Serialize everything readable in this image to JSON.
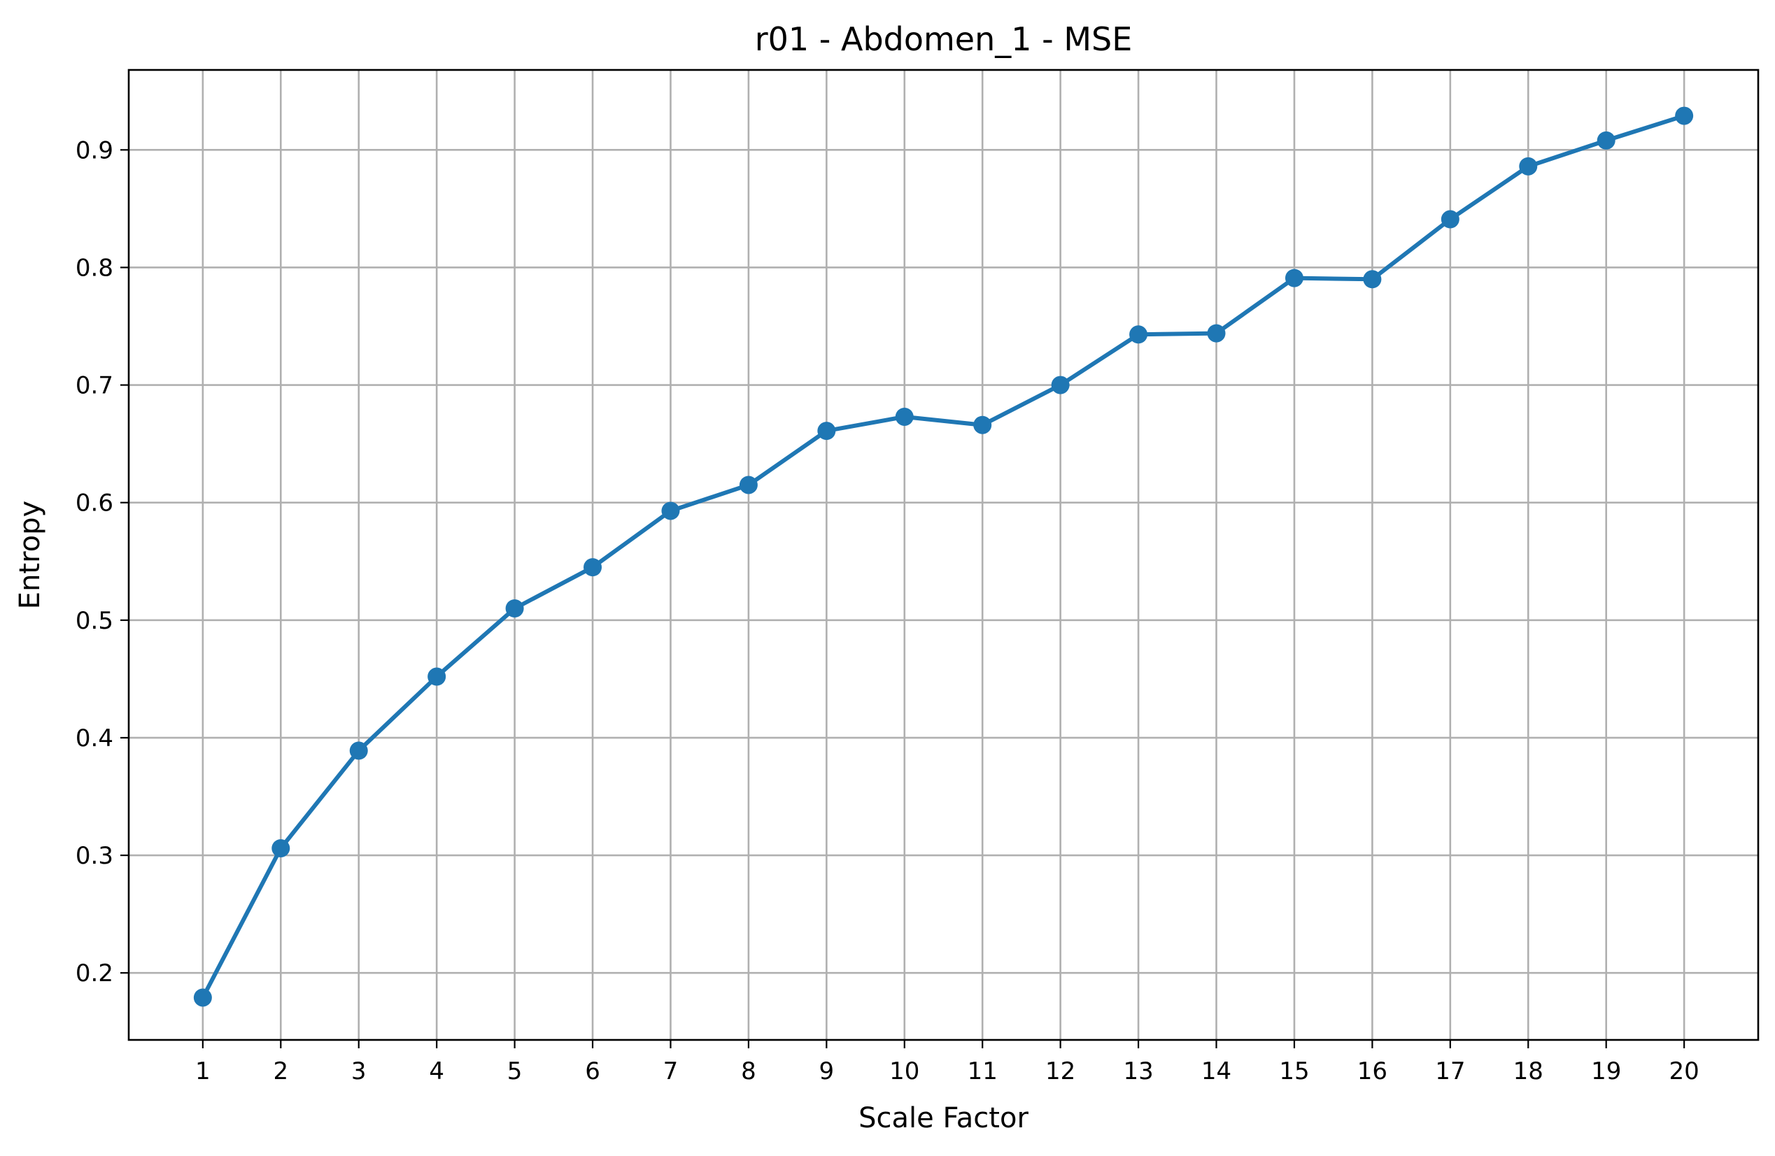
{
  "chart_data": {
    "type": "line",
    "title": "r01 - Abdomen_1 - MSE",
    "xlabel": "Scale Factor",
    "ylabel": "Entropy",
    "x": [
      1,
      2,
      3,
      4,
      5,
      6,
      7,
      8,
      9,
      10,
      11,
      12,
      13,
      14,
      15,
      16,
      17,
      18,
      19,
      20
    ],
    "series": [
      {
        "values": [
          0.179,
          0.306,
          0.389,
          0.452,
          0.51,
          0.545,
          0.593,
          0.615,
          0.661,
          0.673,
          0.666,
          0.7,
          0.743,
          0.744,
          0.791,
          0.79,
          0.841,
          0.886,
          0.908,
          0.929
        ],
        "color": "#1f77b4",
        "marker": "circle"
      }
    ],
    "xlim": [
      0.05,
      20.95
    ],
    "ylim": [
      0.143,
      0.968
    ],
    "xticks": [
      1,
      2,
      3,
      4,
      5,
      6,
      7,
      8,
      9,
      10,
      11,
      12,
      13,
      14,
      15,
      16,
      17,
      18,
      19,
      20
    ],
    "yticks": [
      0.2,
      0.3,
      0.4,
      0.5,
      0.6,
      0.7,
      0.8,
      0.9
    ],
    "ytick_labels": [
      "0.2",
      "0.3",
      "0.4",
      "0.5",
      "0.6",
      "0.7",
      "0.8",
      "0.9"
    ],
    "grid": true,
    "legend": "none"
  }
}
